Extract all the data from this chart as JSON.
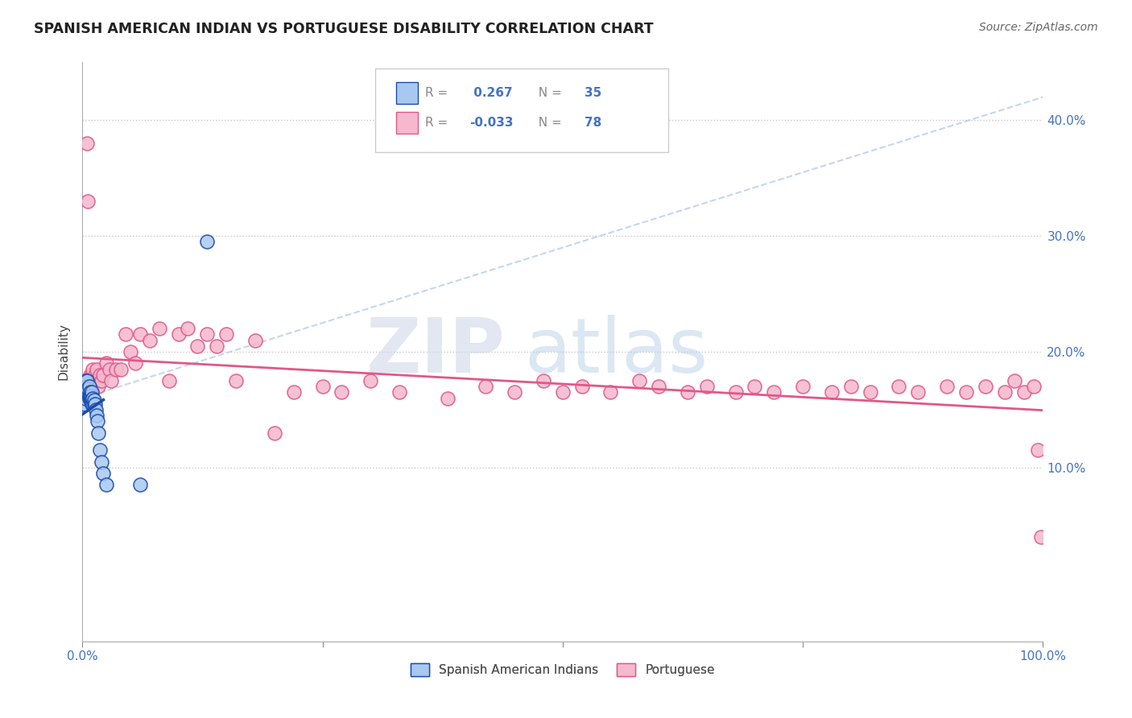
{
  "title": "SPANISH AMERICAN INDIAN VS PORTUGUESE DISABILITY CORRELATION CHART",
  "source": "Source: ZipAtlas.com",
  "ylabel": "Disability",
  "xlim": [
    0.0,
    1.0
  ],
  "ylim": [
    -0.05,
    0.45
  ],
  "R_blue": 0.267,
  "N_blue": 35,
  "R_pink": -0.033,
  "N_pink": 78,
  "blue_color": "#a8c8f0",
  "pink_color": "#f5b8cc",
  "blue_line_color": "#1a4aaa",
  "pink_line_color": "#e05888",
  "diag_line_color": "#b8cce8",
  "watermark_zip": "ZIP",
  "watermark_atlas": "atlas",
  "blue_scatter_x": [
    0.002,
    0.003,
    0.003,
    0.004,
    0.004,
    0.005,
    0.005,
    0.006,
    0.006,
    0.007,
    0.007,
    0.007,
    0.008,
    0.008,
    0.008,
    0.009,
    0.009,
    0.01,
    0.01,
    0.01,
    0.011,
    0.011,
    0.012,
    0.012,
    0.013,
    0.014,
    0.015,
    0.016,
    0.017,
    0.018,
    0.02,
    0.022,
    0.025,
    0.06,
    0.13
  ],
  "blue_scatter_y": [
    0.155,
    0.165,
    0.16,
    0.17,
    0.175,
    0.17,
    0.175,
    0.165,
    0.168,
    0.16,
    0.162,
    0.17,
    0.16,
    0.165,
    0.162,
    0.158,
    0.162,
    0.155,
    0.16,
    0.165,
    0.155,
    0.16,
    0.155,
    0.158,
    0.155,
    0.15,
    0.145,
    0.14,
    0.13,
    0.115,
    0.105,
    0.095,
    0.085,
    0.085,
    0.295
  ],
  "pink_scatter_x": [
    0.001,
    0.002,
    0.003,
    0.004,
    0.005,
    0.005,
    0.006,
    0.007,
    0.008,
    0.008,
    0.009,
    0.01,
    0.01,
    0.011,
    0.012,
    0.013,
    0.014,
    0.015,
    0.016,
    0.017,
    0.018,
    0.02,
    0.022,
    0.025,
    0.028,
    0.03,
    0.035,
    0.04,
    0.045,
    0.05,
    0.055,
    0.06,
    0.07,
    0.08,
    0.09,
    0.1,
    0.11,
    0.12,
    0.13,
    0.14,
    0.15,
    0.16,
    0.18,
    0.2,
    0.22,
    0.25,
    0.27,
    0.3,
    0.33,
    0.38,
    0.42,
    0.45,
    0.48,
    0.5,
    0.52,
    0.55,
    0.58,
    0.6,
    0.63,
    0.65,
    0.68,
    0.7,
    0.72,
    0.75,
    0.78,
    0.8,
    0.82,
    0.85,
    0.87,
    0.9,
    0.92,
    0.94,
    0.96,
    0.97,
    0.98,
    0.99,
    0.995,
    0.998
  ],
  "pink_scatter_y": [
    0.175,
    0.17,
    0.175,
    0.17,
    0.38,
    0.175,
    0.33,
    0.175,
    0.18,
    0.175,
    0.17,
    0.18,
    0.175,
    0.185,
    0.175,
    0.18,
    0.175,
    0.185,
    0.175,
    0.17,
    0.18,
    0.175,
    0.18,
    0.19,
    0.185,
    0.175,
    0.185,
    0.185,
    0.215,
    0.2,
    0.19,
    0.215,
    0.21,
    0.22,
    0.175,
    0.215,
    0.22,
    0.205,
    0.215,
    0.205,
    0.215,
    0.175,
    0.21,
    0.13,
    0.165,
    0.17,
    0.165,
    0.175,
    0.165,
    0.16,
    0.17,
    0.165,
    0.175,
    0.165,
    0.17,
    0.165,
    0.175,
    0.17,
    0.165,
    0.17,
    0.165,
    0.17,
    0.165,
    0.17,
    0.165,
    0.17,
    0.165,
    0.17,
    0.165,
    0.17,
    0.165,
    0.17,
    0.165,
    0.175,
    0.165,
    0.17,
    0.115,
    0.04
  ]
}
